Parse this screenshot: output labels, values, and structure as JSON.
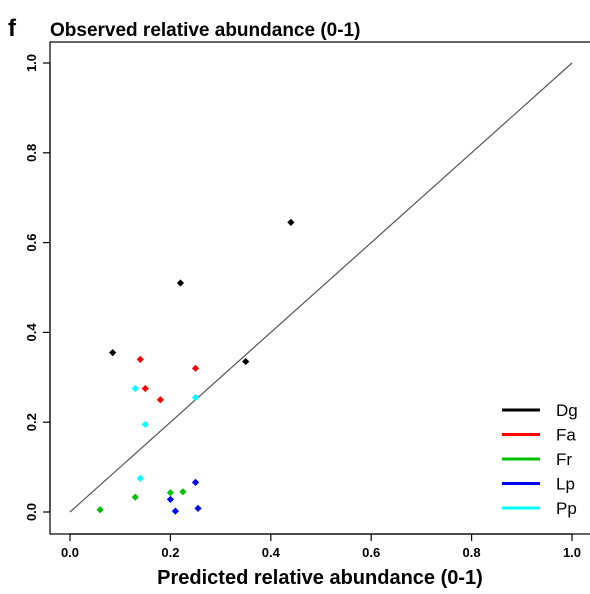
{
  "panel_letter": "f",
  "chart_data": {
    "type": "scatter",
    "title": "Observed relative abundance (0-1)",
    "xlabel": "Predicted relative abundance (0-1)",
    "ylabel": "",
    "xlim": [
      0.0,
      1.0
    ],
    "ylim": [
      0.0,
      1.0
    ],
    "x_ticks": [
      "0.0",
      "0.2",
      "0.4",
      "0.6",
      "0.8",
      "1.0"
    ],
    "y_ticks": [
      "0.0",
      "0.2",
      "0.4",
      "0.6",
      "0.8",
      "1.0"
    ],
    "grid": false,
    "reference_line": "y = x",
    "legend_position": "bottom-right",
    "series": [
      {
        "name": "Dg",
        "color": "#000000",
        "points": [
          [
            0.085,
            0.355
          ],
          [
            0.22,
            0.51
          ],
          [
            0.35,
            0.335
          ],
          [
            0.44,
            0.645
          ]
        ]
      },
      {
        "name": "Fa",
        "color": "#ff0000",
        "points": [
          [
            0.14,
            0.34
          ],
          [
            0.15,
            0.275
          ],
          [
            0.18,
            0.25
          ],
          [
            0.25,
            0.32
          ]
        ]
      },
      {
        "name": "Fr",
        "color": "#00c000",
        "points": [
          [
            0.06,
            0.005
          ],
          [
            0.13,
            0.033
          ],
          [
            0.2,
            0.043
          ],
          [
            0.225,
            0.045
          ]
        ]
      },
      {
        "name": "Lp",
        "color": "#0000ff",
        "points": [
          [
            0.2,
            0.028
          ],
          [
            0.21,
            0.002
          ],
          [
            0.25,
            0.066
          ],
          [
            0.255,
            0.008
          ]
        ]
      },
      {
        "name": "Pp",
        "color": "#00ffff",
        "points": [
          [
            0.13,
            0.275
          ],
          [
            0.15,
            0.195
          ],
          [
            0.14,
            0.075
          ],
          [
            0.25,
            0.255
          ]
        ]
      }
    ]
  }
}
